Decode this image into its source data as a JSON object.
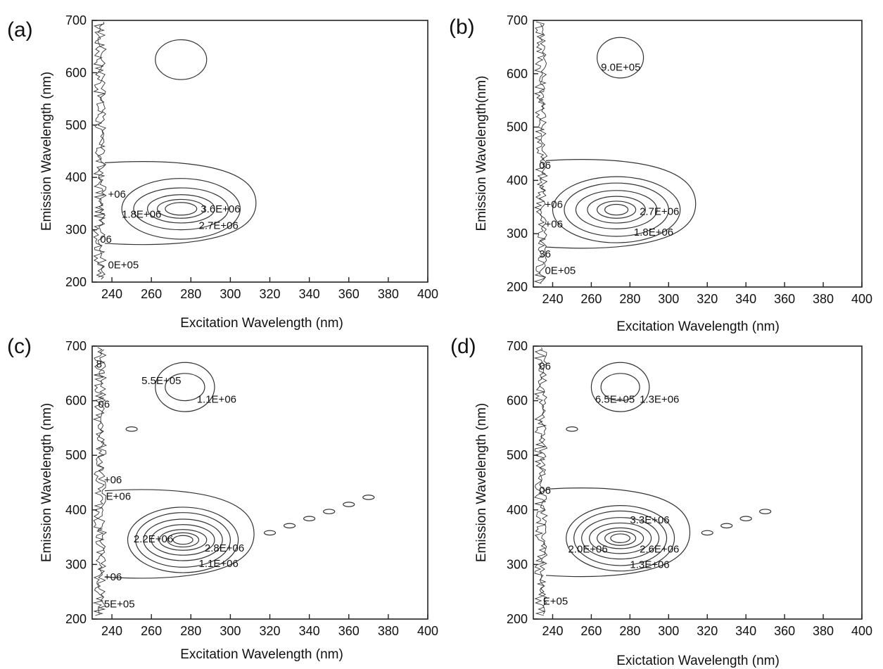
{
  "chart_data": [
    {
      "type": "contour",
      "panel_label": "(a)",
      "xlabel": "Excitation Wavelength (nm)",
      "ylabel": "Emission Wavelength (nm)",
      "xlim": [
        230,
        400
      ],
      "ylim": [
        200,
        700
      ],
      "xticks": [
        "240",
        "260",
        "280",
        "300",
        "320",
        "340",
        "360",
        "380",
        "400"
      ],
      "yticks": [
        "200",
        "300",
        "400",
        "500",
        "600",
        "700"
      ],
      "peaks": [
        {
          "excitation": 275,
          "emission": 340,
          "rings": [
            [
              8,
              12
            ],
            [
              12,
              18
            ],
            [
              17,
              27
            ],
            [
              24,
              40
            ],
            [
              30,
              58
            ]
          ]
        },
        {
          "excitation": 275,
          "emission": 625,
          "rings": [
            [
              13,
              38
            ]
          ]
        }
      ],
      "spurs": [],
      "contour_labels": [
        {
          "text": "3.6E+06",
          "x": 285,
          "y": 340
        },
        {
          "text": "2.7E+06",
          "x": 284,
          "y": 308
        },
        {
          "text": "1.8E+06",
          "x": 245,
          "y": 330
        },
        {
          "text": "+06",
          "x": 238,
          "y": 368
        },
        {
          "text": "06",
          "x": 234,
          "y": 282
        },
        {
          "text": "0E+05",
          "x": 238,
          "y": 233
        }
      ]
    },
    {
      "type": "contour",
      "panel_label": "(b)",
      "xlabel": "Excitation Wavelength (nm)",
      "ylabel": "Emission Wavelength(nm)",
      "xlim": [
        230,
        400
      ],
      "ylim": [
        200,
        700
      ],
      "xticks": [
        "240",
        "260",
        "280",
        "300",
        "320",
        "340",
        "360",
        "380",
        "400"
      ],
      "yticks": [
        "200",
        "300",
        "400",
        "500",
        "600",
        "700"
      ],
      "peaks": [
        {
          "excitation": 273,
          "emission": 345,
          "rings": [
            [
              6,
              10
            ],
            [
              10,
              16
            ],
            [
              15,
              25
            ],
            [
              21,
              36
            ],
            [
              27,
              50
            ],
            [
              33,
              62
            ]
          ]
        },
        {
          "excitation": 275,
          "emission": 630,
          "rings": [
            [
              12,
              38
            ]
          ]
        }
      ],
      "spurs": [],
      "contour_labels": [
        {
          "text": "9.0E+05",
          "x": 265,
          "y": 612
        },
        {
          "text": "2.7E+06",
          "x": 285,
          "y": 342
        },
        {
          "text": "1.8E+06",
          "x": 282,
          "y": 303
        },
        {
          "text": "06",
          "x": 233,
          "y": 428
        },
        {
          "text": "+06",
          "x": 236,
          "y": 355
        },
        {
          "text": "+06",
          "x": 236,
          "y": 318
        },
        {
          "text": "36",
          "x": 233,
          "y": 262
        },
        {
          "text": "0E+05",
          "x": 236,
          "y": 231
        }
      ]
    },
    {
      "type": "contour",
      "panel_label": "(c)",
      "xlabel": "Excitation Wavelength (nm)",
      "ylabel": "Emission Wavelength (nm)",
      "xlim": [
        230,
        400
      ],
      "ylim": [
        200,
        700
      ],
      "xticks": [
        "240",
        "260",
        "280",
        "300",
        "320",
        "340",
        "360",
        "380",
        "400"
      ],
      "yticks": [
        "200",
        "300",
        "400",
        "500",
        "600",
        "700"
      ],
      "peaks": [
        {
          "excitation": 276,
          "emission": 345,
          "rings": [
            [
              5,
              8
            ],
            [
              8,
              13
            ],
            [
              12,
              19
            ],
            [
              16,
              28
            ],
            [
              20,
              38
            ],
            [
              24,
              50
            ],
            [
              28,
              60
            ]
          ]
        },
        {
          "excitation": 277,
          "emission": 625,
          "rings": [
            [
              10,
              25
            ],
            [
              15,
              45
            ]
          ]
        }
      ],
      "spurs": [
        [
          320,
          358
        ],
        [
          330,
          371
        ],
        [
          340,
          384
        ],
        [
          350,
          397
        ],
        [
          360,
          410
        ],
        [
          370,
          423
        ],
        [
          250,
          548
        ]
      ],
      "contour_labels": [
        {
          "text": "5.5E+05",
          "x": 255,
          "y": 637
        },
        {
          "text": "1.1E+06",
          "x": 283,
          "y": 603
        },
        {
          "text": "2.2E+06",
          "x": 251,
          "y": 347
        },
        {
          "text": "2.8E+06",
          "x": 287,
          "y": 330
        },
        {
          "text": "1.1E+06",
          "x": 284,
          "y": 302
        },
        {
          "text": "+06",
          "x": 236,
          "y": 455
        },
        {
          "text": "E+06",
          "x": 237,
          "y": 425
        },
        {
          "text": "8",
          "x": 232,
          "y": 667
        },
        {
          "text": "06",
          "x": 233,
          "y": 594
        },
        {
          "text": "+06",
          "x": 236,
          "y": 277
        },
        {
          "text": "5E+05",
          "x": 236,
          "y": 228
        }
      ]
    },
    {
      "type": "contour",
      "panel_label": "(d)",
      "xlabel": "Exictation Wavelength (nm)",
      "ylabel": "Emission Wavelength (nm)",
      "xlim": [
        230,
        400
      ],
      "ylim": [
        200,
        700
      ],
      "xticks": [
        "240",
        "260",
        "280",
        "300",
        "320",
        "340",
        "360",
        "380",
        "400"
      ],
      "yticks": [
        "200",
        "300",
        "400",
        "500",
        "600",
        "700"
      ],
      "peaks": [
        {
          "excitation": 275,
          "emission": 348,
          "rings": [
            [
              5,
              8
            ],
            [
              8,
              13
            ],
            [
              12,
              19
            ],
            [
              16,
              28
            ],
            [
              20,
              38
            ],
            [
              24,
              50
            ],
            [
              28,
              60
            ]
          ]
        },
        {
          "excitation": 275,
          "emission": 625,
          "rings": [
            [
              10,
              25
            ],
            [
              15,
              45
            ]
          ]
        }
      ],
      "spurs": [
        [
          320,
          358
        ],
        [
          330,
          371
        ],
        [
          340,
          384
        ],
        [
          350,
          397
        ],
        [
          250,
          548
        ]
      ],
      "contour_labels": [
        {
          "text": "6.5E+05",
          "x": 262,
          "y": 603
        },
        {
          "text": "1.3E+06",
          "x": 285,
          "y": 603
        },
        {
          "text": "3.3E+06",
          "x": 280,
          "y": 382
        },
        {
          "text": "2.0E+06",
          "x": 248,
          "y": 328
        },
        {
          "text": "2.6E+06",
          "x": 285,
          "y": 328
        },
        {
          "text": "1.3E+06",
          "x": 280,
          "y": 300
        },
        {
          "text": "06",
          "x": 233,
          "y": 663
        },
        {
          "text": "06",
          "x": 233,
          "y": 436
        },
        {
          "text": "E+05",
          "x": 235,
          "y": 233
        }
      ]
    }
  ]
}
